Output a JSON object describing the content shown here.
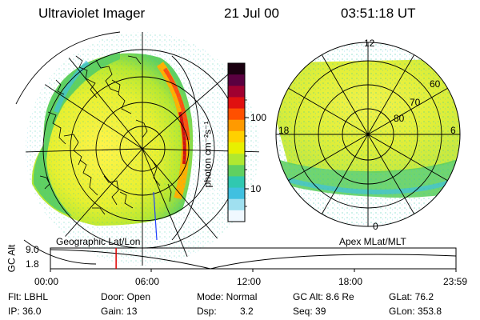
{
  "header": {
    "instrument": "Ultraviolet Imager",
    "date": "21 Jul 00",
    "time": "03:51:18 UT"
  },
  "colorbar": {
    "unit_label": "photon cm⁻²s⁻¹",
    "ticks": [
      "100",
      "10"
    ],
    "colors": [
      "#1a0010",
      "#5a0040",
      "#a00030",
      "#e01010",
      "#ff5000",
      "#ff9a00",
      "#ffd000",
      "#e8f000",
      "#b0e830",
      "#60d060",
      "#30c8b0",
      "#40c0e0",
      "#a0e0f0",
      "#f0f8ff"
    ]
  },
  "polar_plot": {
    "mlt_labels": [
      "12",
      "18",
      "6",
      "0"
    ],
    "mlat_labels": [
      "60",
      "70",
      "80"
    ],
    "caption": "Apex MLat/MLT"
  },
  "geo_plot": {
    "caption": "Geographic Lat/Lon"
  },
  "timeline": {
    "axis_label": "GC Alt",
    "y_top": "9.0",
    "y_bottom": "1.8",
    "ticks": [
      "00:00",
      "06:00",
      "12:00",
      "18:00",
      "23:59"
    ],
    "current_time_fraction": 0.162
  },
  "info": {
    "flt": "Flt: LBHL",
    "ip": "IP: 36.0",
    "door": "Door: Open",
    "gain": "Gain: 13",
    "mode": "Mode: Normal",
    "dsp_label": "Dsp:",
    "dsp_value": "3.2",
    "gc_alt": "GC Alt: 8.6 Re",
    "seq": "Seq: 39",
    "glat": "GLat: 76.2",
    "glon": "GLon: 353.8"
  }
}
